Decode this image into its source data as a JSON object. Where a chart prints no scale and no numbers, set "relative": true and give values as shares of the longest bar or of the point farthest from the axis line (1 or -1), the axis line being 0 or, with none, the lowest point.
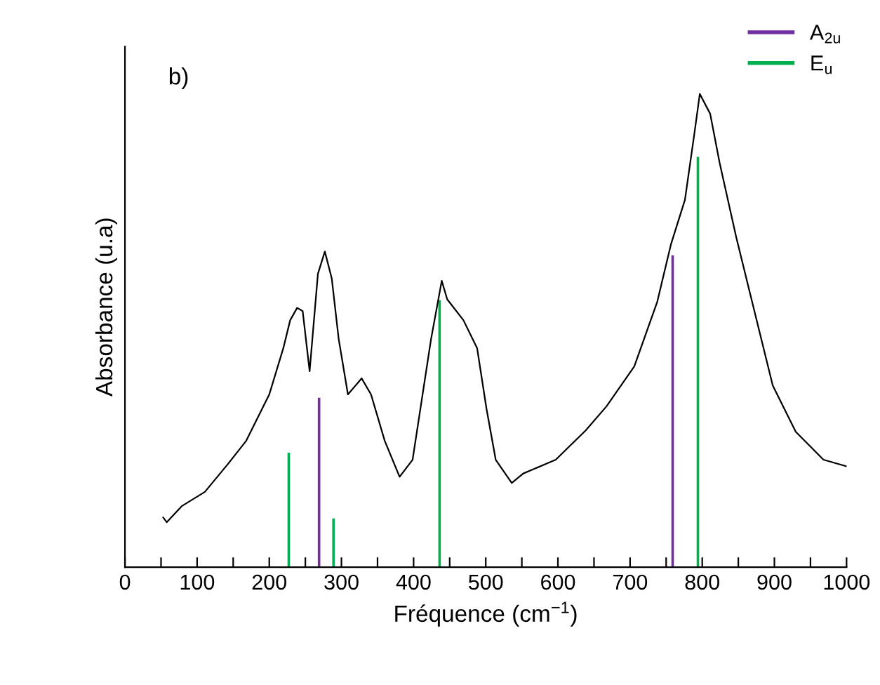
{
  "chart_data": {
    "type": "line",
    "relative": true,
    "xlabel": "Fréquence (cm$^{−1}$)",
    "ylabel": "Absorbance (u.a)",
    "annotations": [
      "b)"
    ],
    "xlim": [
      0,
      1000
    ],
    "xticks": [
      0,
      {
        "value": 50,
        "label": null
      },
      100,
      {
        "value": 150,
        "label": null
      },
      200,
      {
        "value": 250,
        "label": null
      },
      300,
      {
        "value": 350,
        "label": null
      },
      400,
      {
        "value": 450,
        "label": null
      },
      500,
      {
        "value": 550,
        "label": null
      },
      600,
      {
        "value": 650,
        "label": null
      },
      700,
      {
        "value": 750,
        "label": null
      },
      800,
      {
        "value": 850,
        "label": null
      },
      900,
      {
        "value": 950,
        "label": null
      },
      1000
    ],
    "legend": "top right",
    "grid": false,
    "series": [
      {
        "color": "#000000",
        "x": [
          53,
          58,
          78.7,
          110.7,
          142.7,
          168,
          200,
          219.5,
          229,
          238.6,
          246.3,
          255.9,
          267.4,
          277,
          286.6,
          296.2,
          309,
          328,
          341,
          360,
          380.6,
          398.6,
          424.2,
          439,
          446.6,
          469,
          488,
          501,
          513.8,
          536,
          552,
          597,
          638.5,
          667.4,
          705.8,
          737.7,
          756.8,
          776,
          788.9,
          796.6,
          811,
          824,
          847,
          866,
          897.7,
          929.6,
          968,
          1000
        ],
        "values": [
          0.105,
          0.095,
          0.129,
          0.159,
          0.218,
          0.267,
          0.365,
          0.463,
          0.522,
          0.548,
          0.541,
          0.414,
          0.62,
          0.667,
          0.61,
          0.482,
          0.365,
          0.399,
          0.365,
          0.267,
          0.191,
          0.227,
          0.482,
          0.605,
          0.566,
          0.522,
          0.463,
          0.335,
          0.227,
          0.178,
          0.198,
          0.227,
          0.289,
          0.34,
          0.424,
          0.561,
          0.683,
          0.776,
          0.914,
          1.0,
          0.958,
          0.855,
          0.698,
          0.58,
          0.384,
          0.286,
          0.227,
          0.213
        ]
      },
      {
        "type": "bar",
        "name": "A$_{2u}$",
        "color": "#7030a0",
        "x": [
          269,
          759
        ],
        "values": [
          0.358,
          0.659
        ]
      },
      {
        "type": "bar",
        "name": "E$_{u}$",
        "color": "#00b050",
        "x": [
          227,
          289,
          436,
          794
        ],
        "values": [
          0.242,
          0.103,
          0.564,
          0.867
        ]
      }
    ]
  }
}
